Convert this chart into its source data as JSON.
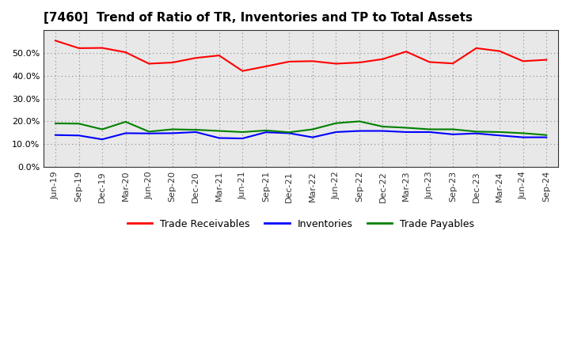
{
  "title": "[7460]  Trend of Ratio of TR, Inventories and TP to Total Assets",
  "x_labels": [
    "Jun-19",
    "Sep-19",
    "Dec-19",
    "Mar-20",
    "Jun-20",
    "Sep-20",
    "Dec-20",
    "Mar-21",
    "Jun-21",
    "Sep-21",
    "Dec-21",
    "Mar-22",
    "Jun-22",
    "Sep-22",
    "Dec-22",
    "Mar-23",
    "Jun-23",
    "Sep-23",
    "Dec-23",
    "Mar-24",
    "Jun-24",
    "Sep-24"
  ],
  "trade_receivables": [
    0.554,
    0.521,
    0.522,
    0.503,
    0.453,
    0.458,
    0.478,
    0.489,
    0.421,
    0.441,
    0.462,
    0.464,
    0.453,
    0.458,
    0.473,
    0.506,
    0.46,
    0.454,
    0.521,
    0.508,
    0.464,
    0.47
  ],
  "inventories": [
    0.14,
    0.138,
    0.121,
    0.148,
    0.147,
    0.148,
    0.153,
    0.127,
    0.125,
    0.152,
    0.148,
    0.13,
    0.153,
    0.158,
    0.158,
    0.153,
    0.153,
    0.143,
    0.147,
    0.138,
    0.13,
    0.13
  ],
  "trade_payables": [
    0.191,
    0.19,
    0.165,
    0.198,
    0.155,
    0.165,
    0.163,
    0.158,
    0.153,
    0.16,
    0.152,
    0.165,
    0.192,
    0.2,
    0.177,
    0.172,
    0.165,
    0.165,
    0.155,
    0.153,
    0.148,
    0.14
  ],
  "tr_color": "#ff0000",
  "inv_color": "#0000ff",
  "tp_color": "#008000",
  "ylim": [
    0.0,
    0.6
  ],
  "yticks": [
    0.0,
    0.1,
    0.2,
    0.3,
    0.4,
    0.5
  ],
  "plot_bg_color": "#e8e8e8",
  "fig_bg_color": "#ffffff",
  "grid_color": "#888888",
  "legend_labels": [
    "Trade Receivables",
    "Inventories",
    "Trade Payables"
  ],
  "title_fontsize": 11,
  "tick_fontsize": 8
}
